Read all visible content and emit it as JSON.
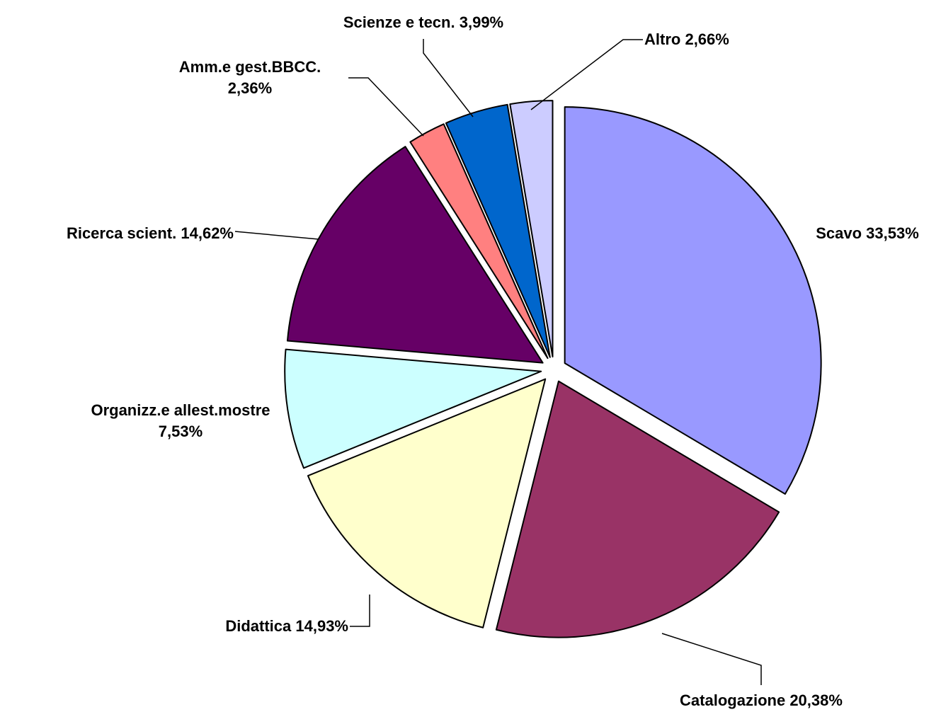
{
  "chart_data": {
    "type": "pie",
    "categories": [
      "Scavo",
      "Catalogazione",
      "Didattica",
      "Organizz.e allest.mostre",
      "Ricerca scient.",
      "Amm.e gest.BBCC.",
      "Scienze e tecn.",
      "Altro"
    ],
    "values": [
      33.53,
      20.38,
      14.93,
      7.53,
      14.62,
      2.36,
      3.99,
      2.66
    ],
    "value_labels": [
      "33,53%",
      "20,38%",
      "14,93%",
      "7,53%",
      "14,62%",
      "2,36%",
      "3,99%",
      "2,66%"
    ],
    "colors": [
      "#9999FF",
      "#993366",
      "#FFFFCC",
      "#CCFFFF",
      "#660066",
      "#FF8080",
      "#0066CC",
      "#CCCCFF"
    ]
  }
}
